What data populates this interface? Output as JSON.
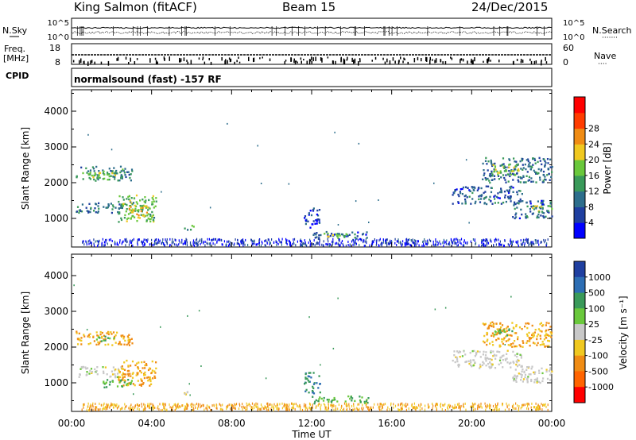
{
  "header": {
    "title": "King Salmon (fitACF)",
    "beam": "Beam 15",
    "date": "24/Dec/2015"
  },
  "top_strip": {
    "left_label": "N.Sky",
    "right_label": "N.Search",
    "left_ticks": [
      "10^5",
      "10^0"
    ],
    "right_ticks": [
      "10^5",
      "10^0"
    ]
  },
  "freq_strip": {
    "left_label_1": "Freq.",
    "left_label_2": "[MHz]",
    "right_label": "Nave",
    "left_ticks": [
      "18",
      "8"
    ],
    "right_ticks": [
      "60",
      "0"
    ]
  },
  "cpid": {
    "label": "CPID",
    "text": "normalsound (fast) -157 RF"
  },
  "colors": {
    "power_scale": [
      "#0000ff",
      "#1f3fa0",
      "#2d6e8c",
      "#3a9a5a",
      "#6ac83c",
      "#f0c820",
      "#f08c14",
      "#ff3c00",
      "#ff0000"
    ],
    "velocity_scale": [
      "#1f3fa0",
      "#2d6eb4",
      "#3a9a5a",
      "#6ac83c",
      "#c8c8c8",
      "#f0c820",
      "#f08c14",
      "#ff6400",
      "#ff0000"
    ]
  },
  "chart_data": [
    {
      "type": "heatmap",
      "name": "power",
      "ylabel": "Slant Range [km]",
      "yticks": [
        "1000",
        "2000",
        "3000",
        "4000"
      ],
      "ylim": [
        200,
        4600
      ],
      "colorbar_label": "Power [dB]",
      "colorbar_ticks": [
        "4",
        "8",
        "12",
        "16",
        "20",
        "24",
        "28"
      ],
      "clim": [
        0,
        32
      ],
      "regions": [
        {
          "t0": 0.2,
          "t1": 3.0,
          "r0": 2050,
          "r1": 2450,
          "v": 12
        },
        {
          "t0": 1.0,
          "t1": 2.2,
          "r0": 2100,
          "r1": 2300,
          "v": 18
        },
        {
          "t0": 0.2,
          "t1": 2.5,
          "r0": 1150,
          "r1": 1450,
          "v": 10
        },
        {
          "t0": 2.3,
          "t1": 4.2,
          "r0": 900,
          "r1": 1650,
          "v": 16
        },
        {
          "t0": 2.8,
          "t1": 3.9,
          "r0": 1000,
          "r1": 1400,
          "v": 22
        },
        {
          "t0": 5.6,
          "t1": 6.1,
          "r0": 650,
          "r1": 800,
          "v": 14
        },
        {
          "t0": 12.0,
          "t1": 14.8,
          "r0": 420,
          "r1": 620,
          "v": 8
        },
        {
          "t0": 12.5,
          "t1": 13.8,
          "r0": 450,
          "r1": 580,
          "v": 18
        },
        {
          "t0": 11.6,
          "t1": 12.4,
          "r0": 700,
          "r1": 1300,
          "v": 6
        },
        {
          "t0": 19.0,
          "t1": 22.5,
          "r0": 1400,
          "r1": 1900,
          "v": 8
        },
        {
          "t0": 20.5,
          "t1": 24.0,
          "r0": 2000,
          "r1": 2700,
          "v": 10
        },
        {
          "t0": 21.0,
          "t1": 22.5,
          "r0": 2200,
          "r1": 2500,
          "v": 18
        },
        {
          "t0": 22.0,
          "t1": 24.0,
          "r0": 1000,
          "r1": 1500,
          "v": 8
        },
        {
          "t0": 23.0,
          "t1": 24.0,
          "r0": 1150,
          "r1": 1350,
          "v": 18
        },
        {
          "t0": 0.5,
          "t1": 23.8,
          "r0": 230,
          "r1": 420,
          "v": 4
        }
      ]
    },
    {
      "type": "heatmap",
      "name": "velocity",
      "ylabel": "Slant Range [km]",
      "yticks": [
        "1000",
        "2000",
        "3000",
        "4000"
      ],
      "ylim": [
        200,
        4600
      ],
      "colorbar_label": "Velocity [m s⁻¹]",
      "colorbar_ticks": [
        "1000",
        "500",
        "100",
        "25",
        "-25",
        "-100",
        "-500",
        "-1000"
      ],
      "regions": [
        {
          "t0": 0.2,
          "t1": 3.0,
          "r0": 2050,
          "r1": 2450,
          "v": -100
        },
        {
          "t0": 1.2,
          "t1": 2.2,
          "r0": 2150,
          "r1": 2300,
          "v": 100
        },
        {
          "t0": 0.3,
          "t1": 2.5,
          "r0": 1150,
          "r1": 1450,
          "v": 0
        },
        {
          "t0": 2.3,
          "t1": 4.2,
          "r0": 900,
          "r1": 1650,
          "v": -100
        },
        {
          "t0": 1.5,
          "t1": 3.0,
          "r0": 850,
          "r1": 1100,
          "v": 100
        },
        {
          "t0": 5.6,
          "t1": 6.1,
          "r0": 650,
          "r1": 800,
          "v": -25
        },
        {
          "t0": 12.0,
          "t1": 14.8,
          "r0": 420,
          "r1": 620,
          "v": 100
        },
        {
          "t0": 11.6,
          "t1": 12.4,
          "r0": 700,
          "r1": 1300,
          "v": 500
        },
        {
          "t0": 19.0,
          "t1": 22.5,
          "r0": 1400,
          "r1": 1900,
          "v": 0
        },
        {
          "t0": 20.5,
          "t1": 24.0,
          "r0": 2000,
          "r1": 2700,
          "v": -100
        },
        {
          "t0": 21.0,
          "t1": 22.0,
          "r0": 2300,
          "r1": 2500,
          "v": 100
        },
        {
          "t0": 22.0,
          "t1": 24.0,
          "r0": 1000,
          "r1": 1500,
          "v": 0
        },
        {
          "t0": 0.5,
          "t1": 23.8,
          "r0": 230,
          "r1": 420,
          "v": -100
        }
      ]
    }
  ],
  "time_axis": {
    "label": "Time UT",
    "ticks": [
      "00:00",
      "04:00",
      "08:00",
      "12:00",
      "16:00",
      "20:00",
      "00:00"
    ]
  }
}
